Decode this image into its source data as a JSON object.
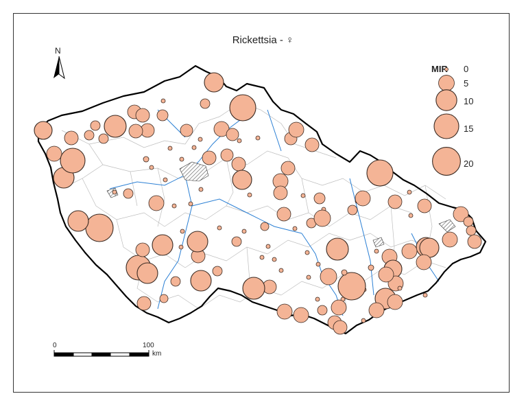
{
  "title": "Rickettsia - ♀",
  "north_label": "N",
  "legend": {
    "title": "MIR",
    "entries": [
      {
        "label": "0",
        "value": 0
      },
      {
        "label": "5",
        "value": 5
      },
      {
        "label": "10",
        "value": 10
      },
      {
        "label": "15",
        "value": 15
      },
      {
        "label": "20",
        "value": 20
      }
    ]
  },
  "scalebar": {
    "labels": [
      "0",
      "100",
      "km"
    ]
  },
  "colors": {
    "circle_fill": "#f4b496",
    "circle_stroke": "#3a2a22",
    "border": "#000000",
    "district_lines": "#b8b8b8",
    "rivers": "#2a7fd4",
    "cities_hatch": "#555555"
  },
  "icons": {
    "north_arrow": "north-arrow-icon"
  }
}
